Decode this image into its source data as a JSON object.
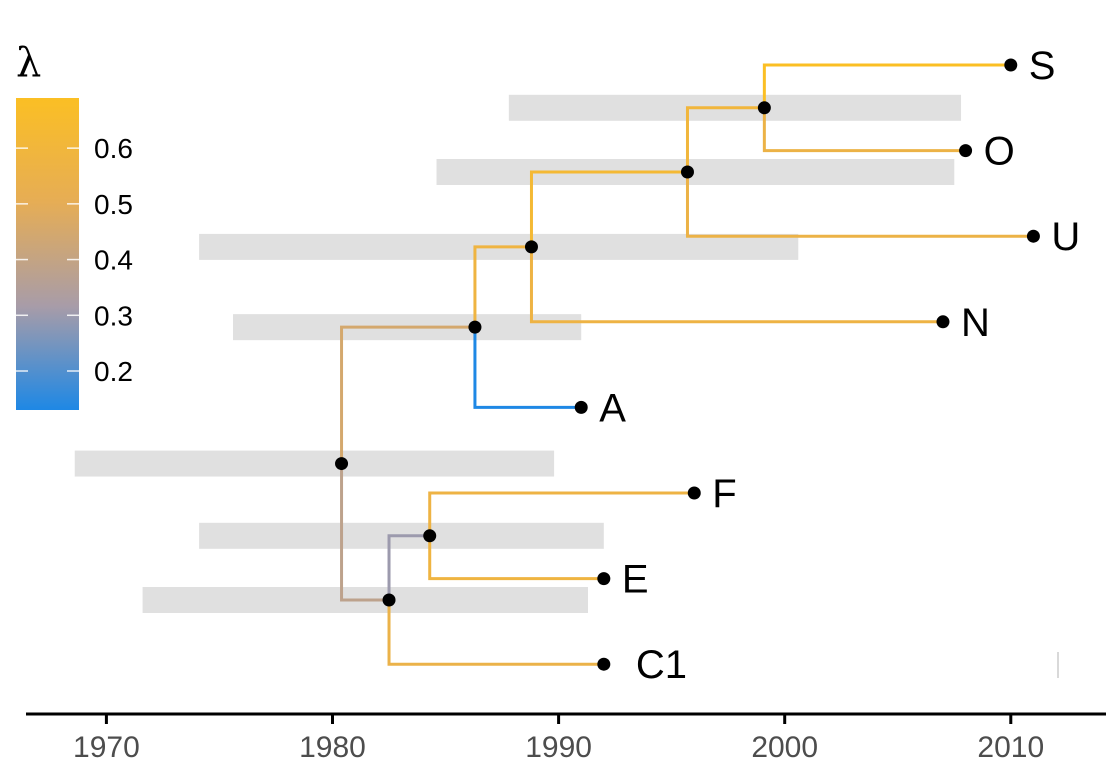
{
  "chart_data": {
    "type": "phylogenetic-tree",
    "title": "",
    "xlabel": "",
    "ylabel": "",
    "xlim": [
      1966.6,
      2014.1
    ],
    "x_ticks": [
      1970,
      1980,
      1990,
      2000,
      2010
    ],
    "tick_labels": [
      "1970",
      "1980",
      "1990",
      "2000",
      "2010"
    ],
    "grid": false,
    "legend": {
      "title": "λ",
      "position": "top-left",
      "range": [
        0.13,
        0.69
      ],
      "ticks": [
        0.2,
        0.3,
        0.4,
        0.5,
        0.6
      ],
      "tick_labels": [
        "0.2",
        "0.3",
        "0.4",
        "0.5",
        "0.6"
      ],
      "colors": [
        "#1e88e5",
        "#a89ca8",
        "#e6ad55",
        "#fbbf24"
      ]
    },
    "tip_order": [
      "S",
      "O",
      "U",
      "N",
      "A",
      "F",
      "E",
      "C1"
    ],
    "nodes": [
      {
        "id": "root",
        "x": 1980.4,
        "parent": null,
        "lambda": 0.4,
        "hpd": [
          1968.6,
          1989.8
        ]
      },
      {
        "id": "n_ANOUS",
        "x": 1986.3,
        "parent": "root",
        "lambda": 0.45,
        "hpd": [
          1975.6,
          1991.0
        ]
      },
      {
        "id": "n_NOUS",
        "x": 1988.8,
        "parent": "n_ANOUS",
        "lambda": 0.58,
        "hpd": [
          1974.1,
          2000.6
        ]
      },
      {
        "id": "n_OUS",
        "x": 1995.7,
        "parent": "n_NOUS",
        "lambda": 0.63,
        "hpd": [
          1984.6,
          2007.5
        ]
      },
      {
        "id": "n_OS",
        "x": 1999.1,
        "parent": "n_OUS",
        "lambda": 0.6,
        "hpd": [
          1987.8,
          2007.8
        ]
      },
      {
        "id": "n_C1EF",
        "x": 1982.5,
        "parent": "root",
        "lambda": 0.38,
        "hpd": [
          1971.6,
          1991.3
        ]
      },
      {
        "id": "n_EF",
        "x": 1984.3,
        "parent": "n_C1EF",
        "lambda": 0.3,
        "hpd": [
          1974.1,
          1992.0
        ]
      },
      {
        "id": "S",
        "x": 2010.0,
        "parent": "n_OS",
        "lambda": 0.69
      },
      {
        "id": "O",
        "x": 2008.0,
        "parent": "n_OS",
        "lambda": 0.56
      },
      {
        "id": "U",
        "x": 2011.0,
        "parent": "n_OUS",
        "lambda": 0.56
      },
      {
        "id": "N",
        "x": 2007.0,
        "parent": "n_NOUS",
        "lambda": 0.57
      },
      {
        "id": "A",
        "x": 1991.0,
        "parent": "n_ANOUS",
        "lambda": 0.13
      },
      {
        "id": "F",
        "x": 1996.0,
        "parent": "n_EF",
        "lambda": 0.57
      },
      {
        "id": "E",
        "x": 1992.0,
        "parent": "n_EF",
        "lambda": 0.58
      },
      {
        "id": "C1",
        "x": 1992.0,
        "parent": "n_C1EF",
        "lambda": 0.55
      }
    ]
  }
}
